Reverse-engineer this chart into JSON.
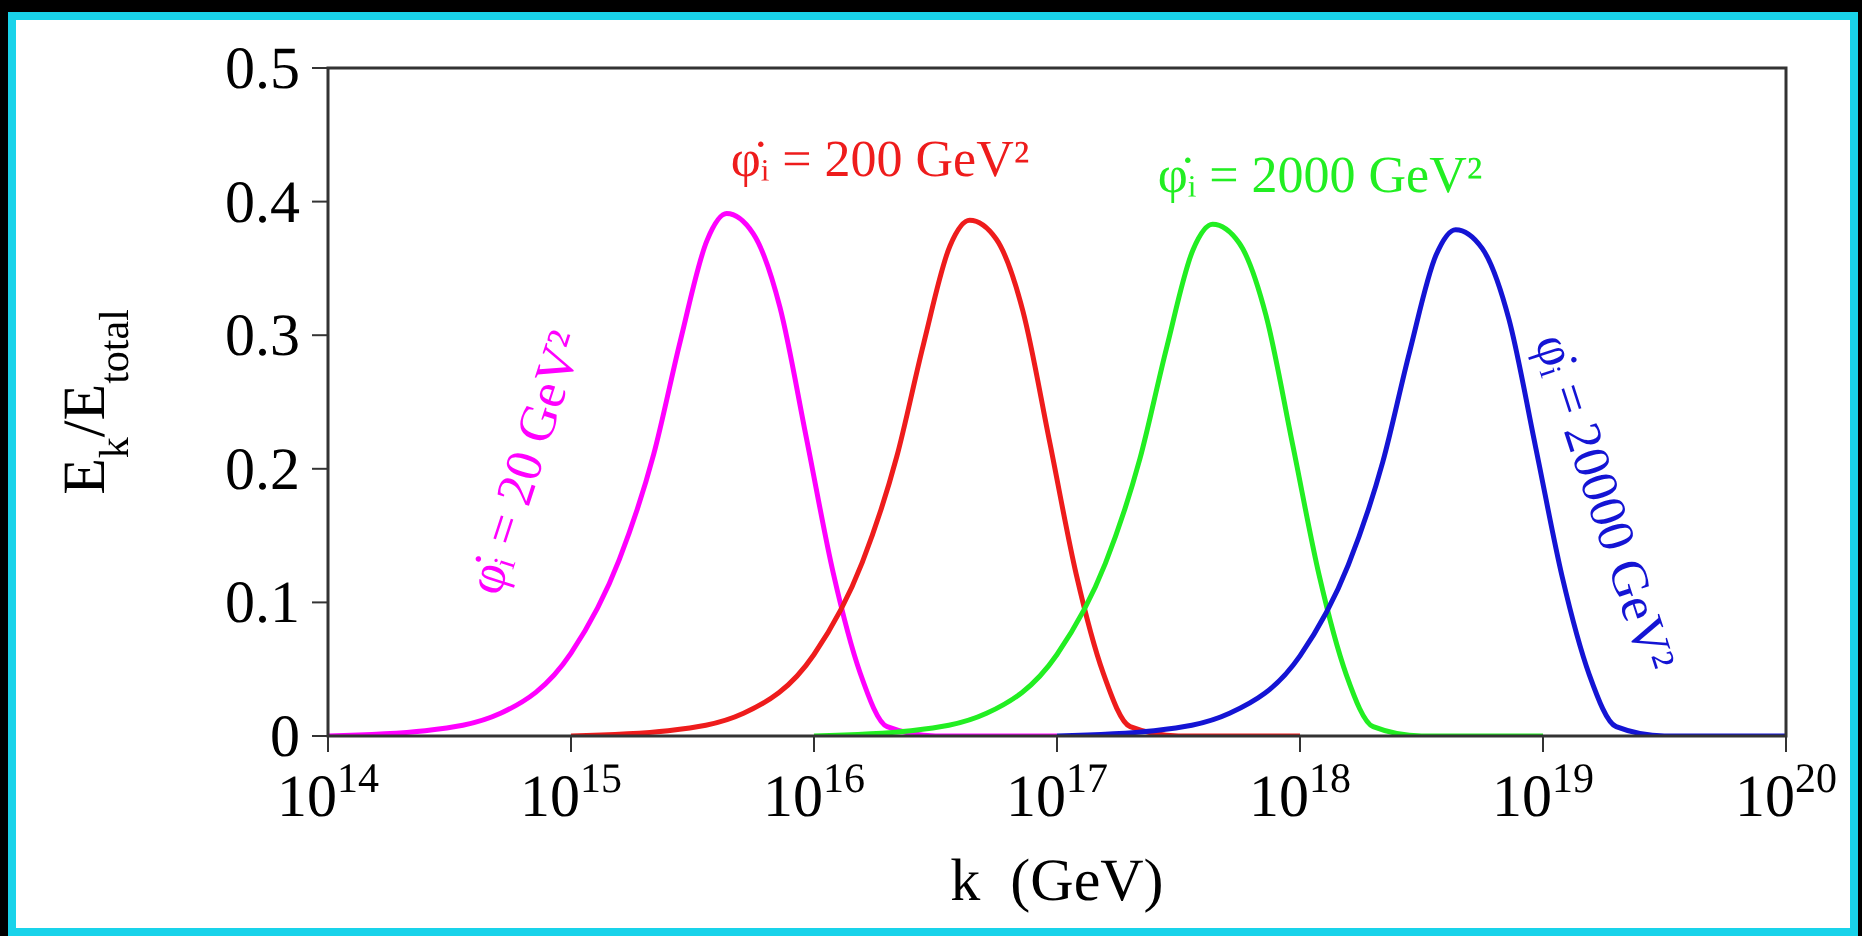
{
  "chart_data": {
    "type": "line",
    "xlabel": "k  (GeV)",
    "ylabel": "E$_{k}$/E$_{total}$",
    "log": "x",
    "xlim": [
      100000000000000.0,
      1e+20
    ],
    "xticks": [
      {
        "value": 100000000000000.0,
        "label": "10$^{14}$"
      },
      {
        "value": 1000000000000000.0,
        "label": "10$^{15}$"
      },
      {
        "value": 1e+16,
        "label": "10$^{16}$"
      },
      {
        "value": 1e+17,
        "label": "10$^{17}$"
      },
      {
        "value": 1e+18,
        "label": "10$^{18}$"
      },
      {
        "value": 1e+19,
        "label": "10$^{19}$"
      },
      {
        "value": 1e+20,
        "label": "10$^{20}$"
      }
    ],
    "ylim": [
      0,
      0.5
    ],
    "yticks": [
      0,
      0.1,
      0.2,
      0.3,
      0.4,
      0.5
    ],
    "series": [
      {
        "color": "#ff00ff",
        "x": [
          100000000000000.0,
          251000000000000.0,
          513000000000000.0,
          1000000000000000.0,
          1580000000000000.0,
          2190000000000000.0,
          2820000000000000.0,
          3630000000000000.0,
          4370000000000000.0,
          5620000000000000.0,
          7240000000000000.0,
          9330000000000000.0,
          1.2e+16,
          1.55e+16,
          2e+16,
          3.16e+16,
          1e+17
        ],
        "values": [
          0,
          0.004,
          0.017,
          0.062,
          0.132,
          0.211,
          0.296,
          0.371,
          0.391,
          0.376,
          0.321,
          0.222,
          0.122,
          0.047,
          0.007,
          0,
          0
        ]
      },
      {
        "color": "#ee1c1c",
        "x": [
          1000000000000000.0,
          2510000000000000.0,
          5130000000000000.0,
          1e+16,
          1.58e+16,
          2.19e+16,
          2.82e+16,
          3.63e+16,
          4.37e+16,
          5.62e+16,
          7.24e+16,
          9.33e+16,
          1.2e+17,
          1.55e+17,
          2e+17,
          3.16e+17,
          1e+18
        ],
        "values": [
          0,
          0.004,
          0.017,
          0.061,
          0.13,
          0.209,
          0.293,
          0.367,
          0.386,
          0.372,
          0.318,
          0.22,
          0.121,
          0.047,
          0.007,
          0,
          0
        ]
      },
      {
        "color": "#22ee22",
        "x": [
          1e+16,
          2.51e+16,
          5.13e+16,
          1e+17,
          1.58e+17,
          2.19e+17,
          2.82e+17,
          3.63e+17,
          4.37e+17,
          5.62e+17,
          7.24e+17,
          9.33e+17,
          1.2e+18,
          1.55e+18,
          2e+18,
          3.16e+18,
          1e+19
        ],
        "values": [
          0,
          0.004,
          0.017,
          0.061,
          0.129,
          0.207,
          0.29,
          0.364,
          0.383,
          0.369,
          0.315,
          0.218,
          0.12,
          0.046,
          0.007,
          0,
          0
        ]
      },
      {
        "color": "#1414d4",
        "x": [
          1e+17,
          2.51e+17,
          5.13e+17,
          1e+18,
          1.58e+18,
          2.19e+18,
          2.82e+18,
          3.63e+18,
          4.37e+18,
          5.62e+18,
          7.24e+18,
          9.33e+18,
          1.2e+19,
          1.55e+19,
          2e+19,
          3.16e+19,
          1e+20
        ],
        "values": [
          0,
          0.004,
          0.017,
          0.06,
          0.128,
          0.205,
          0.287,
          0.36,
          0.379,
          0.365,
          0.312,
          0.216,
          0.119,
          0.046,
          0.007,
          0,
          0
        ]
      }
    ],
    "annotations": [
      "φ̇ᵢ = 20 GeV²",
      "φ̇ᵢ = 200 GeV²",
      "φ̇ᵢ = 2000 GeV²",
      "φ̇ᵢ = 20000 GeV²"
    ]
  }
}
